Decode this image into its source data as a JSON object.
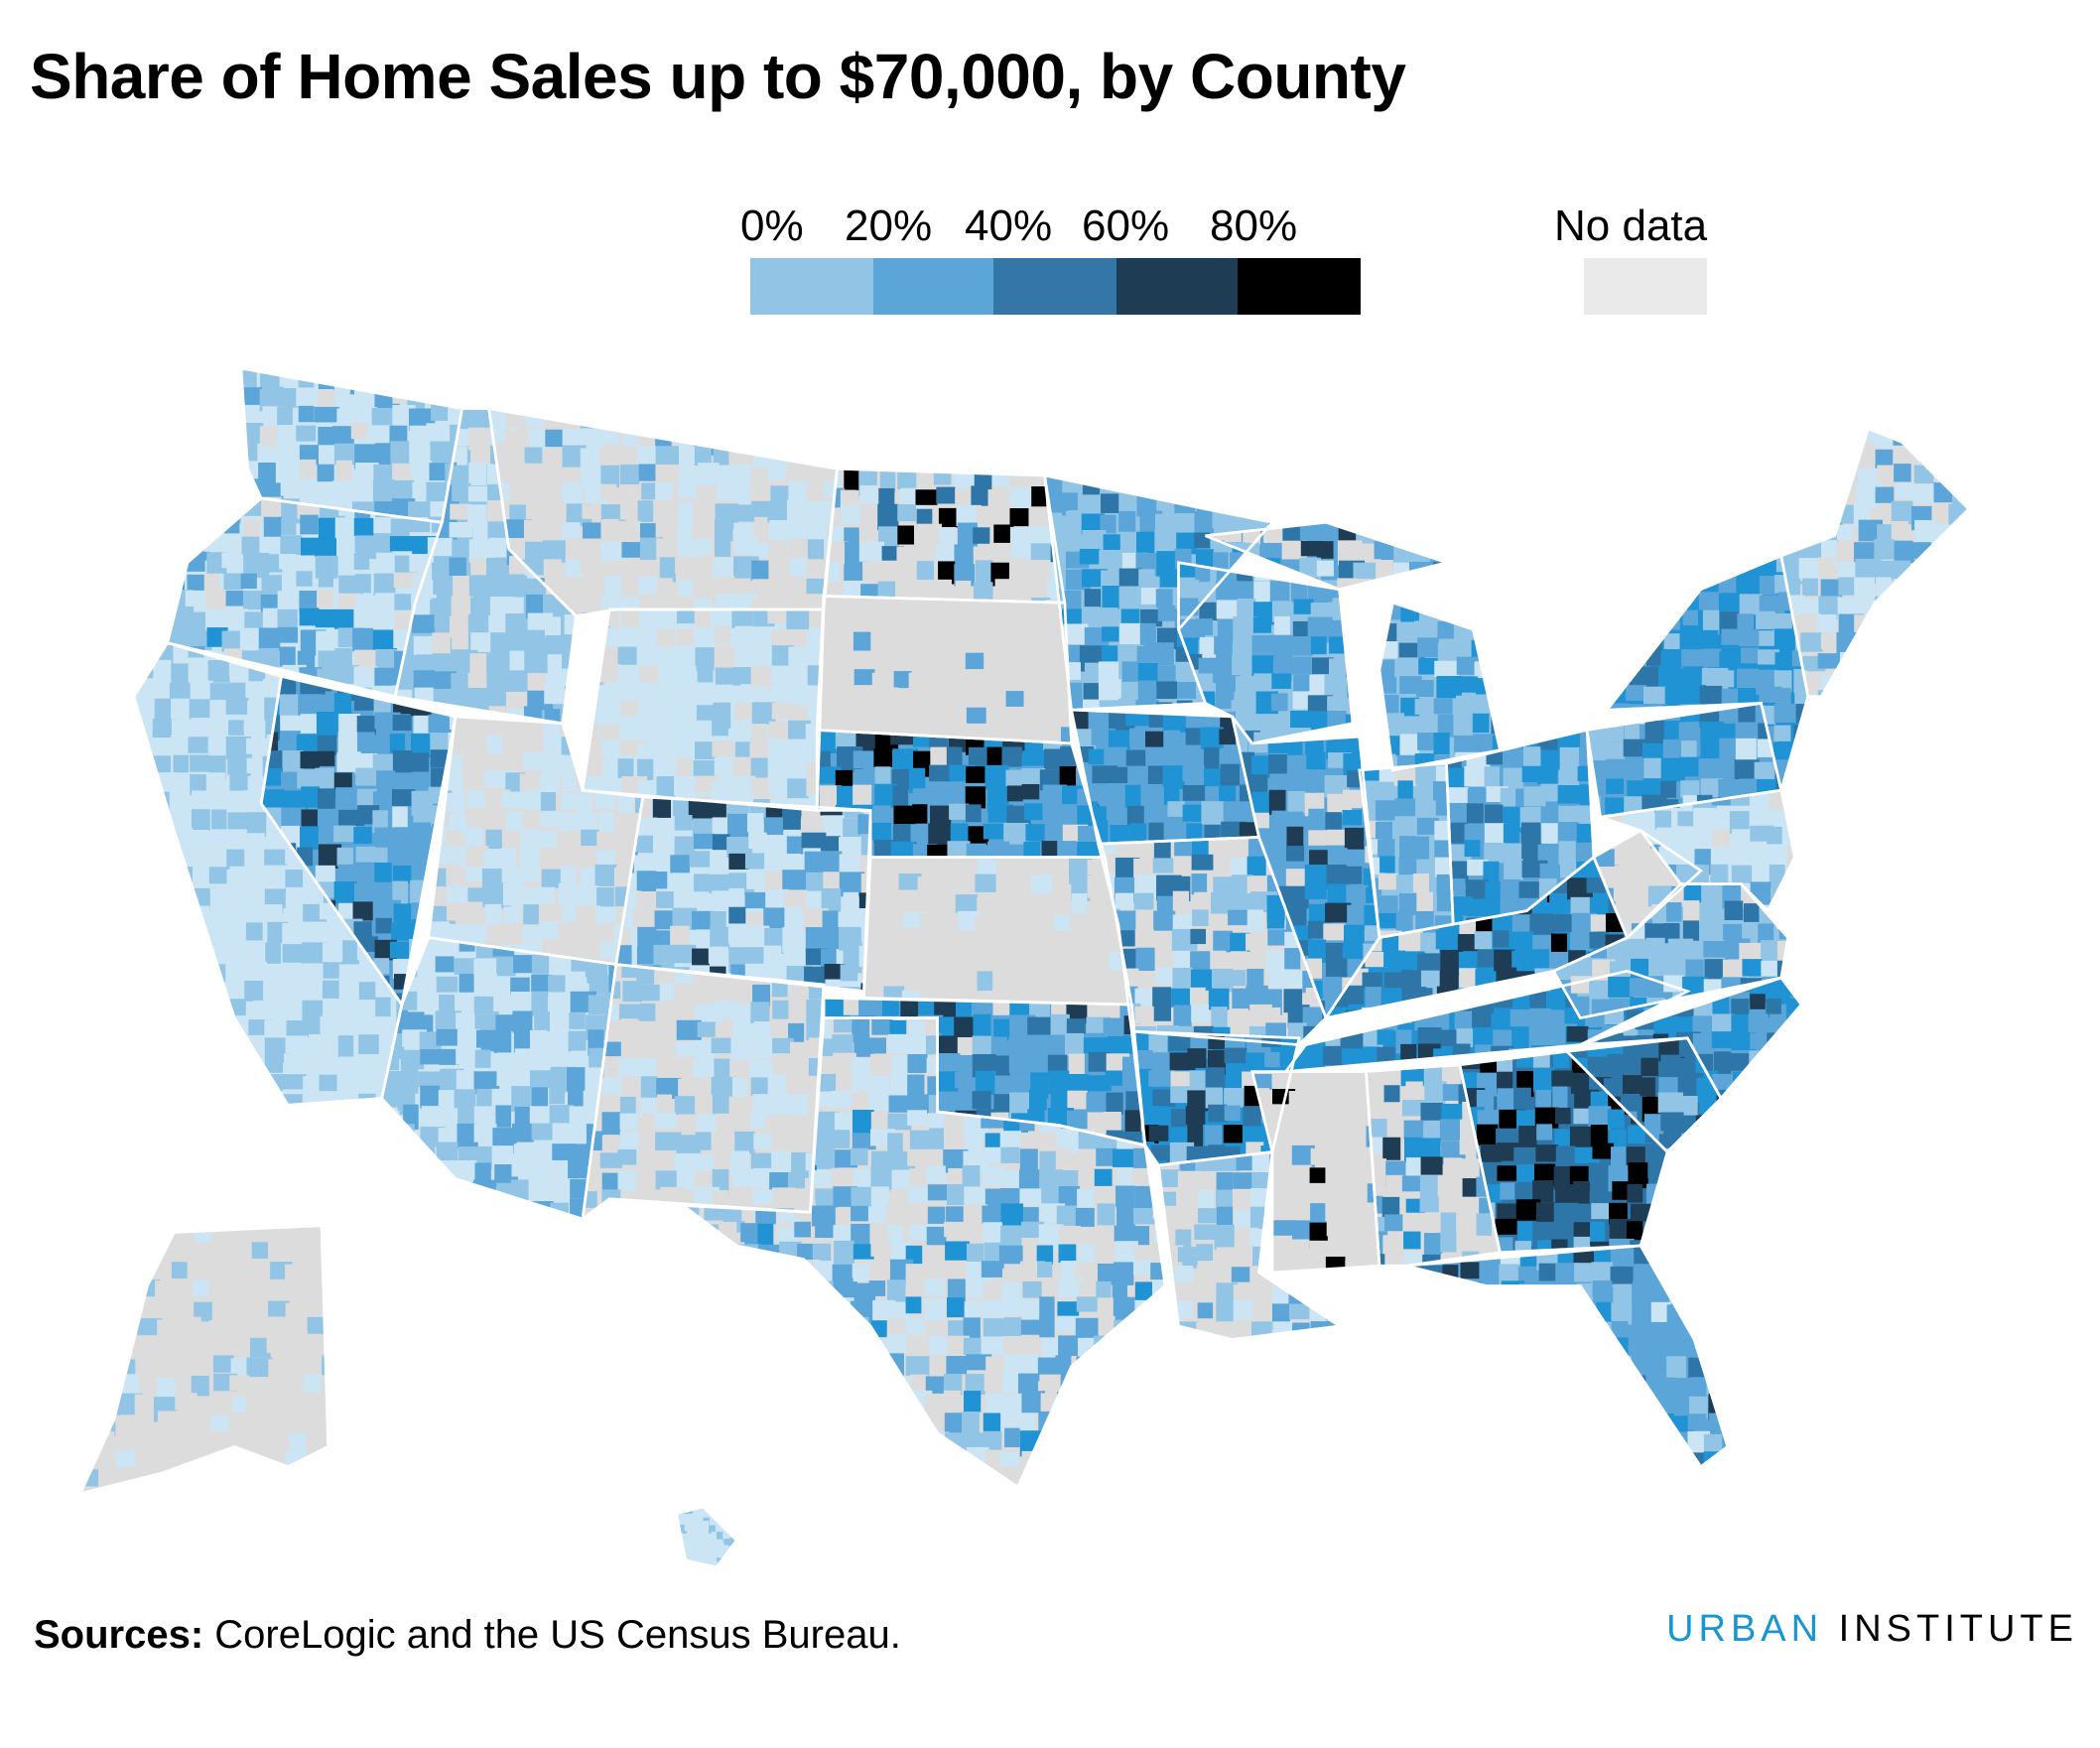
{
  "chart_data": {
    "type": "choropleth",
    "title": "Share of Home Sales up to $70,000, by County",
    "legend": {
      "bins": [
        {
          "label": "0%",
          "range": [
            0,
            20
          ],
          "color": "#92c5e5"
        },
        {
          "label": "20%",
          "range": [
            20,
            40
          ],
          "color": "#5ba5d8"
        },
        {
          "label": "40%",
          "range": [
            40,
            60
          ],
          "color": "#3476a8"
        },
        {
          "label": "60%",
          "range": [
            60,
            80
          ],
          "color": "#1f3c55"
        },
        {
          "label": "80%",
          "range": [
            80,
            100
          ],
          "color": "#000000"
        }
      ],
      "no_data": {
        "label": "No data",
        "color": "#eaeaea"
      },
      "placement": "top-center"
    },
    "geography": "US counties"
  },
  "footer": {
    "sources_label": "Sources:",
    "sources_text": " CoreLogic and the US Census Bureau.",
    "logo_part1": "URBAN",
    "logo_part2": " INSTITUTE"
  }
}
